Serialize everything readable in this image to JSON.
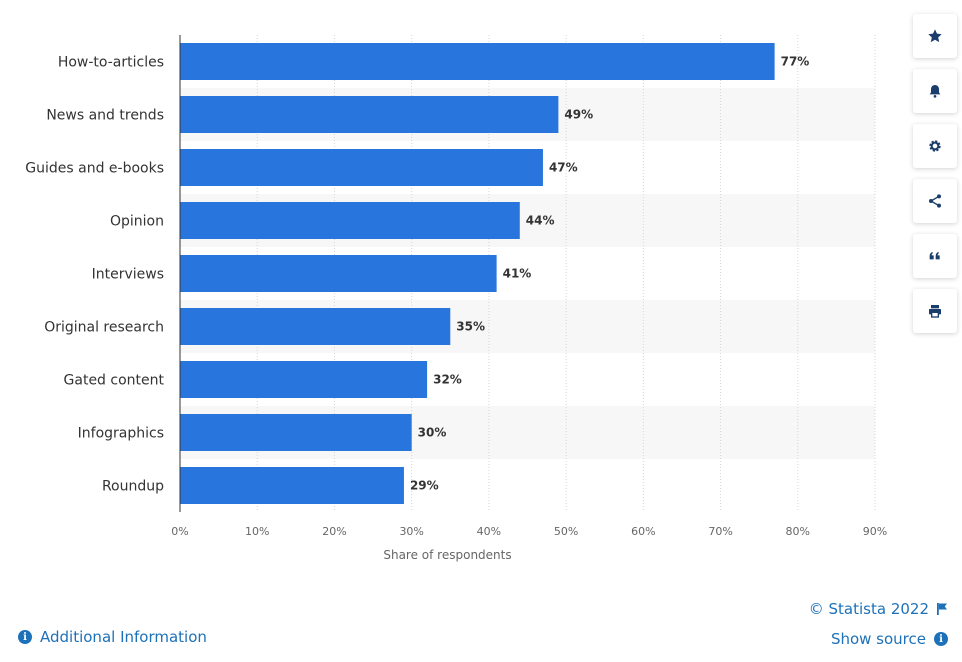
{
  "chart_data": {
    "type": "bar",
    "orientation": "horizontal",
    "categories": [
      "How-to-articles",
      "News and trends",
      "Guides and e-books",
      "Opinion",
      "Interviews",
      "Original research",
      "Gated content",
      "Infographics",
      "Roundup"
    ],
    "values": [
      77,
      49,
      47,
      44,
      41,
      35,
      32,
      30,
      29
    ],
    "value_labels": [
      "77%",
      "49%",
      "47%",
      "44%",
      "41%",
      "35%",
      "32%",
      "30%",
      "29%"
    ],
    "xlabel": "Share of respondents",
    "xlim": [
      0,
      90
    ],
    "x_ticks": [
      0,
      10,
      20,
      30,
      40,
      50,
      60,
      70,
      80,
      90
    ],
    "x_tick_labels": [
      "0%",
      "10%",
      "20%",
      "30%",
      "40%",
      "50%",
      "60%",
      "70%",
      "80%",
      "90%"
    ],
    "grid": true,
    "bar_color": "#2876dd"
  },
  "toolbar": {
    "buttons": [
      {
        "name": "favorite-button",
        "icon": "star-icon"
      },
      {
        "name": "notification-button",
        "icon": "bell-icon"
      },
      {
        "name": "settings-button",
        "icon": "gear-icon"
      },
      {
        "name": "share-button",
        "icon": "share-icon"
      },
      {
        "name": "cite-button",
        "icon": "quote-icon"
      },
      {
        "name": "print-button",
        "icon": "print-icon"
      }
    ]
  },
  "footer": {
    "additional_info": "Additional Information",
    "copyright": "© Statista 2022",
    "show_source": "Show source"
  },
  "colors": {
    "accent": "#1d71b8",
    "bar": "#2876dd",
    "band": "#f7f7f7",
    "grid": "#d6d6d6"
  }
}
